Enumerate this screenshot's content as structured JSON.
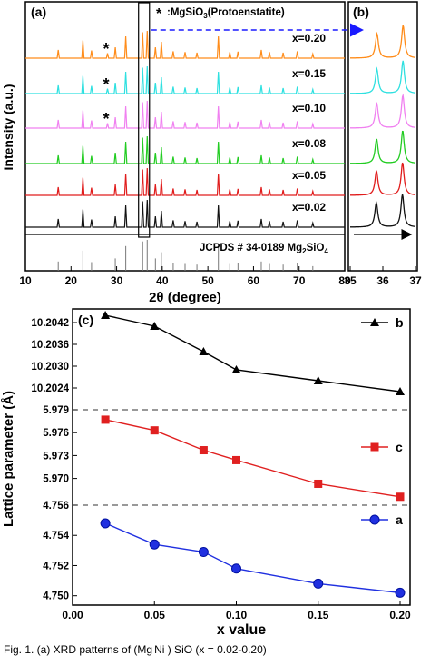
{
  "chart_data": [
    {
      "panel_label": "(a)",
      "type": "line",
      "subtype": "xrd-stacked-patterns",
      "xlabel": "2θ (degree)",
      "ylabel": "Intensity (a.u.)",
      "xlim": [
        10,
        80
      ],
      "xticks": [
        10,
        20,
        30,
        40,
        50,
        60,
        70,
        80
      ],
      "series": [
        {
          "name": "x=0.20",
          "color": "#ff8c1a"
        },
        {
          "name": "x=0.15",
          "color": "#2fe0e0"
        },
        {
          "name": "x=0.10",
          "color": "#f080f0"
        },
        {
          "name": "x=0.08",
          "color": "#22cc22"
        },
        {
          "name": "x=0.05",
          "color": "#e01c1c"
        },
        {
          "name": "x=0.02",
          "color": "#111111"
        }
      ],
      "peak_positions": [
        17.2,
        22.6,
        24.5,
        29.7,
        32.0,
        35.7,
        36.7,
        38.5,
        39.8,
        42.4,
        45.0,
        47.6,
        52.3,
        54.8,
        56.6,
        61.7,
        63.5,
        66.5,
        69.6,
        73.0
      ],
      "peak_heights": [
        0.3,
        0.65,
        0.28,
        0.4,
        0.8,
        0.95,
        1.0,
        0.4,
        0.6,
        0.25,
        0.22,
        0.2,
        0.8,
        0.22,
        0.24,
        0.3,
        0.22,
        0.2,
        0.25,
        0.15
      ],
      "impurity_marker": "*",
      "impurity_label": ":MgSiO",
      "impurity_label_sub": "3",
      "impurity_label_tail": "(Protoenstatite)",
      "impurity_marked_series": [
        "x=0.20",
        "x=0.15",
        "x=0.10"
      ],
      "impurity_peak_x": 28.0,
      "reference_label": "JCPDS # 34-0189 Mg",
      "reference_label_sub": "2",
      "reference_label_tail": "SiO",
      "reference_label_sub2": "4"
    },
    {
      "panel_label": "(b)",
      "type": "line",
      "subtype": "xrd-zoom",
      "xlim": [
        35,
        37
      ],
      "xticks": [
        35,
        36,
        37
      ],
      "zoom_peaks": [
        35.8,
        36.6
      ]
    },
    {
      "panel_label": "(c)",
      "type": "line",
      "xlabel": "x value",
      "ylabel": "Lattice parameter (Å)",
      "x": [
        0.02,
        0.05,
        0.08,
        0.1,
        0.15,
        0.2
      ],
      "xlim": [
        0.0,
        0.2
      ],
      "xticks": [
        "0.00",
        "0.05",
        "0.10",
        "0.15",
        "0.20"
      ],
      "series": [
        {
          "name": "b",
          "marker": "triangle",
          "color": "#000000",
          "values": [
            10.2044,
            10.2041,
            10.2034,
            10.2029,
            10.2026,
            10.2023
          ],
          "ylim": [
            10.2018,
            10.2045
          ],
          "yticks": [
            "10.2024",
            "10.2030",
            "10.2036",
            "10.2042"
          ]
        },
        {
          "name": "c",
          "marker": "square",
          "color": "#e02020",
          "values": [
            5.9777,
            5.9763,
            5.9737,
            5.9724,
            5.9693,
            5.9676
          ],
          "ylim": [
            5.9665,
            5.979
          ],
          "yticks": [
            "5.970",
            "5.973",
            "5.976",
            "5.979"
          ]
        },
        {
          "name": "a",
          "marker": "circle",
          "color": "#2030e0",
          "values": [
            4.7548,
            4.7534,
            4.7529,
            4.7518,
            4.7508,
            4.7502
          ],
          "ylim": [
            4.7495,
            4.756
          ],
          "yticks": [
            "4.750",
            "4.752",
            "4.754",
            "4.756"
          ]
        }
      ]
    }
  ],
  "caption": "Fig. 1.   (a)  XRD  patterns  of  (Mg",
  "caption_tail": "Ni ) SiO    (x = 0.02-0.20)"
}
